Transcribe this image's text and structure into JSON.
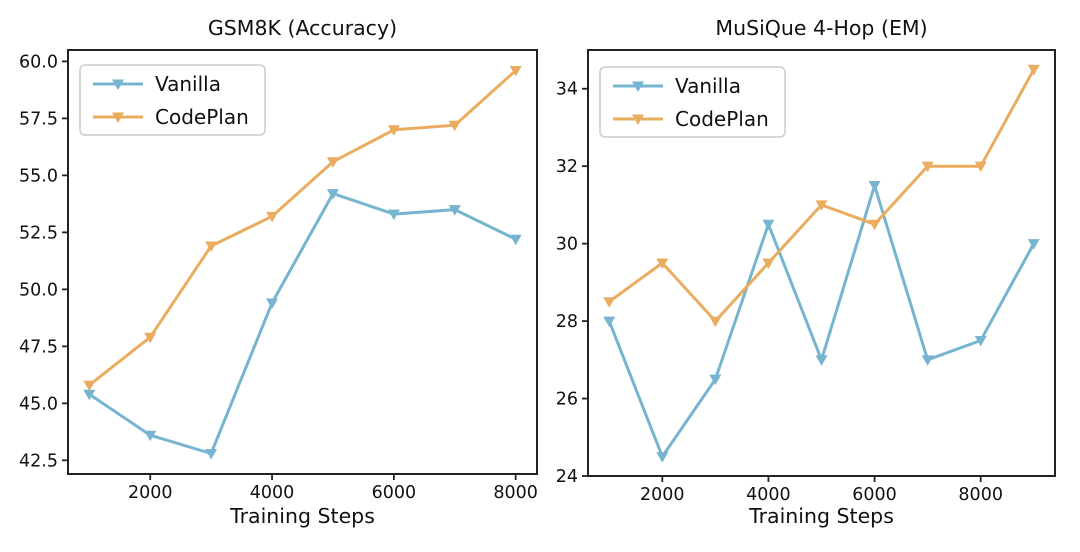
{
  "figure": {
    "background": "#ffffff",
    "text_color": "#111111",
    "spine_color": "#222222",
    "legend_border_color": "#cccccc"
  },
  "chart_data": [
    {
      "name": "gsm8k",
      "type": "line",
      "title": "GSM8K (Accuracy)",
      "xlabel": "Training Steps",
      "ylabel": "",
      "x": [
        1000,
        2000,
        3000,
        4000,
        5000,
        6000,
        7000,
        8000
      ],
      "series": [
        {
          "name": "Vanilla",
          "color": "#76B4D0",
          "marker": "triangle-down",
          "values": [
            45.4,
            43.6,
            42.8,
            49.4,
            54.2,
            53.3,
            53.5,
            52.2
          ]
        },
        {
          "name": "CodePlan",
          "color": "#EAAC5F",
          "marker": "triangle-down",
          "values": [
            45.8,
            47.9,
            51.9,
            53.2,
            55.6,
            57.0,
            57.2,
            59.6
          ]
        }
      ],
      "axes": {
        "xlim": [
          650,
          8350
        ],
        "ylim": [
          41.9,
          60.5
        ],
        "xticks": {
          "values": [
            2000,
            4000,
            6000,
            8000
          ],
          "labels": [
            "2000",
            "4000",
            "6000",
            "8000"
          ]
        },
        "yticks": {
          "values": [
            42.5,
            45.0,
            47.5,
            50.0,
            52.5,
            55.0,
            57.5,
            60.0
          ],
          "labels": [
            "42.5",
            "45.0",
            "47.5",
            "50.0",
            "52.5",
            "55.0",
            "57.5",
            "60.0"
          ]
        }
      },
      "legend": {
        "position": "upper-left",
        "entries": [
          "Vanilla",
          "CodePlan"
        ]
      },
      "grid": false
    },
    {
      "name": "musique",
      "type": "line",
      "title": "MuSiQue 4-Hop (EM)",
      "xlabel": "Training Steps",
      "ylabel": "",
      "x": [
        1000,
        2000,
        3000,
        4000,
        5000,
        6000,
        7000,
        8000,
        9000
      ],
      "series": [
        {
          "name": "Vanilla",
          "color": "#76B4D0",
          "marker": "triangle-down",
          "values": [
            28.0,
            24.5,
            26.5,
            30.5,
            27.0,
            31.5,
            27.0,
            27.5,
            30.0
          ]
        },
        {
          "name": "CodePlan",
          "color": "#EAAC5F",
          "marker": "triangle-down",
          "values": [
            28.5,
            29.5,
            28.0,
            29.5,
            31.0,
            30.5,
            32.0,
            32.0,
            34.5
          ]
        }
      ],
      "axes": {
        "xlim": [
          600,
          9400
        ],
        "ylim": [
          24,
          35
        ],
        "xticks": {
          "values": [
            2000,
            4000,
            6000,
            8000
          ],
          "labels": [
            "2000",
            "4000",
            "6000",
            "8000"
          ]
        },
        "yticks": {
          "values": [
            24,
            26,
            28,
            30,
            32,
            34
          ],
          "labels": [
            "24",
            "26",
            "28",
            "30",
            "32",
            "34"
          ]
        }
      },
      "legend": {
        "position": "upper-left",
        "entries": [
          "Vanilla",
          "CodePlan"
        ]
      },
      "grid": false
    }
  ]
}
